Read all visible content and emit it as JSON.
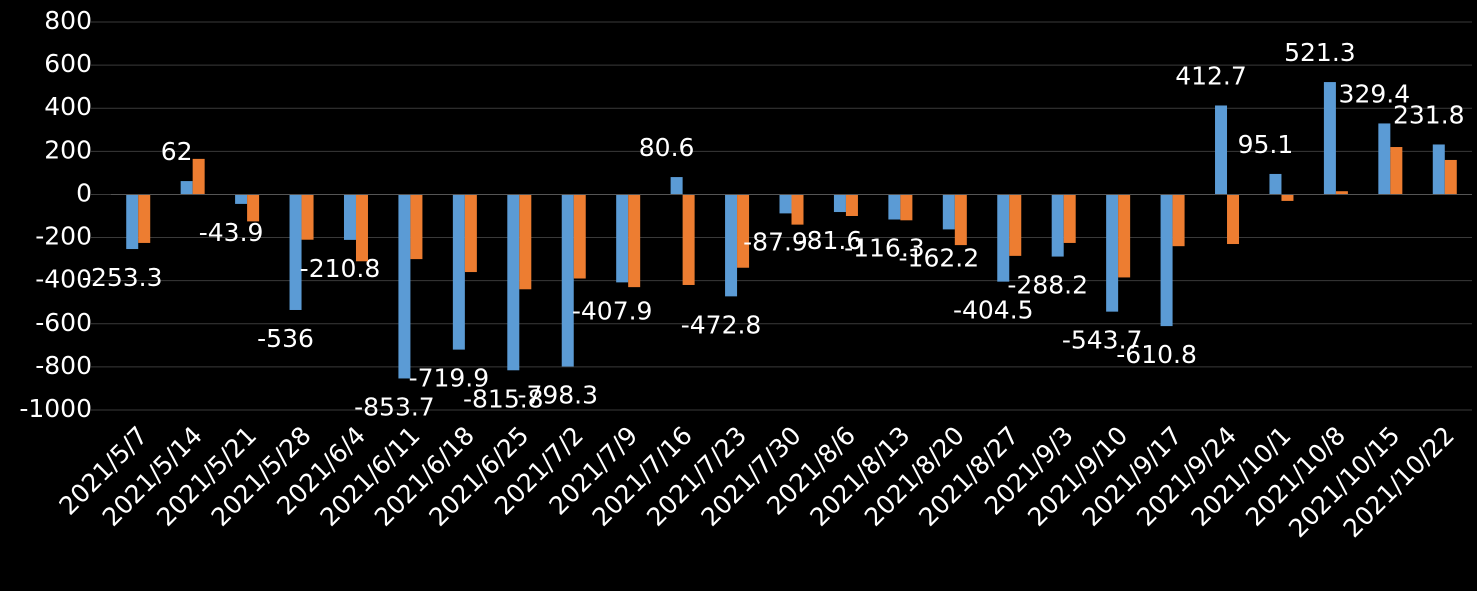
{
  "chart_data": {
    "type": "bar",
    "categories": [
      "2021/5/7",
      "2021/5/14",
      "2021/5/21",
      "2021/5/28",
      "2021/6/4",
      "2021/6/11",
      "2021/6/18",
      "2021/6/25",
      "2021/7/2",
      "2021/7/9",
      "2021/7/16",
      "2021/7/23",
      "2021/7/30",
      "2021/8/6",
      "2021/8/13",
      "2021/8/20",
      "2021/8/27",
      "2021/9/3",
      "2021/9/10",
      "2021/9/17",
      "2021/9/24",
      "2021/10/1",
      "2021/10/8",
      "2021/10/15",
      "2021/10/22"
    ],
    "series": [
      {
        "color": "#5b9bd5",
        "data_labels": true,
        "values": [
          -253.3,
          62,
          -43.9,
          -536,
          -210.8,
          -853.7,
          -719.9,
          -815.8,
          -798.3,
          -407.9,
          80.6,
          -472.8,
          -87.9,
          -81.6,
          -116.3,
          -162.2,
          -404.5,
          -288.2,
          -543.7,
          -610.8,
          412.7,
          95.1,
          521.3,
          329.4,
          231.8
        ]
      },
      {
        "color": "#ed7d31",
        "data_labels": false,
        "values": [
          -225,
          165,
          -125,
          -210,
          -310,
          -300,
          -360,
          -440,
          -390,
          -430,
          -420,
          -340,
          -140,
          -100,
          -120,
          -235,
          -285,
          -225,
          -385,
          -240,
          -230,
          -30,
          15,
          220,
          160
        ]
      }
    ],
    "ylim": [
      -1000,
      800
    ],
    "yticks": [
      -1000,
      -800,
      -600,
      -400,
      -200,
      0,
      200,
      400,
      600,
      800
    ],
    "grid": true
  }
}
